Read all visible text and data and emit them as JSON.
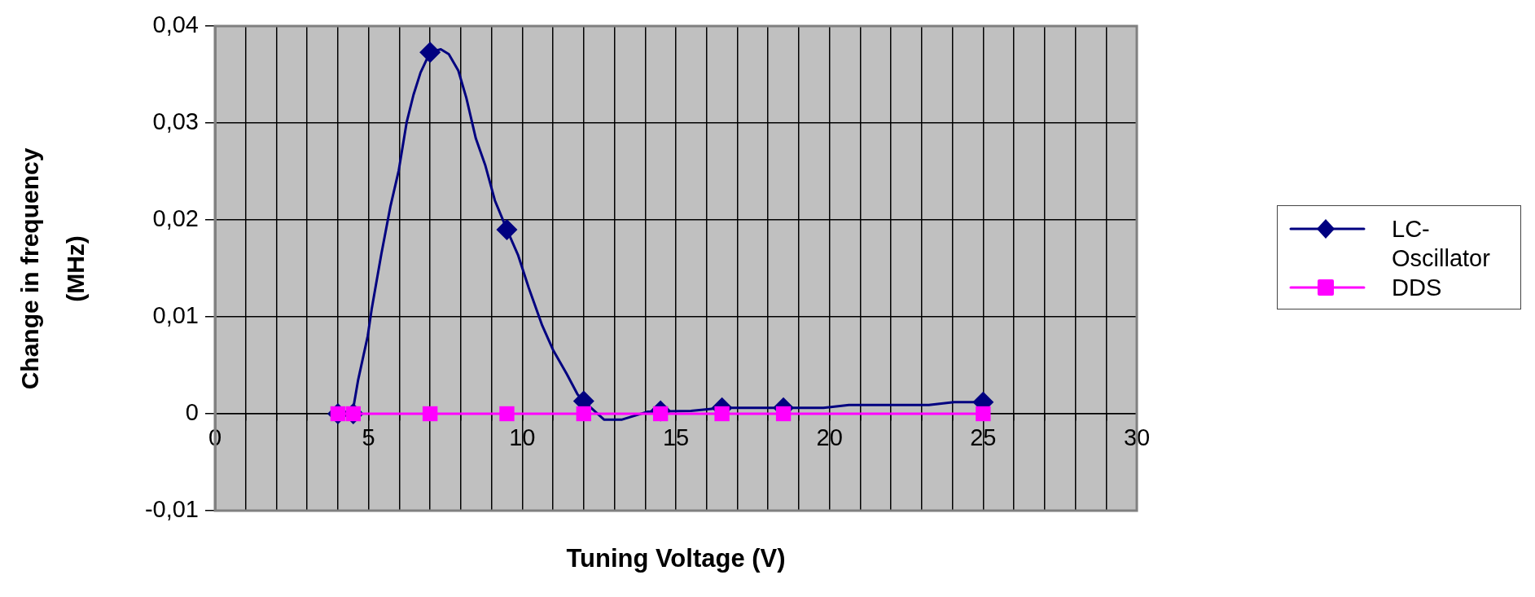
{
  "chart_data": {
    "type": "line",
    "xlabel": "Tuning Voltage (V)",
    "ylabel": "Change in frequency (MHz)",
    "xlim": [
      0,
      30
    ],
    "ylim": [
      -0.01,
      0.04
    ],
    "xticks": [
      0,
      {
        "value": 1,
        "label": null
      },
      {
        "value": 2,
        "label": null
      },
      {
        "value": 3,
        "label": null
      },
      {
        "value": 4,
        "label": null
      },
      5,
      {
        "value": 6,
        "label": null
      },
      {
        "value": 7,
        "label": null
      },
      {
        "value": 8,
        "label": null
      },
      {
        "value": 9,
        "label": null
      },
      10,
      {
        "value": 11,
        "label": null
      },
      {
        "value": 12,
        "label": null
      },
      {
        "value": 13,
        "label": null
      },
      {
        "value": 14,
        "label": null
      },
      15,
      {
        "value": 16,
        "label": null
      },
      {
        "value": 17,
        "label": null
      },
      {
        "value": 18,
        "label": null
      },
      {
        "value": 19,
        "label": null
      },
      20,
      {
        "value": 21,
        "label": null
      },
      {
        "value": 22,
        "label": null
      },
      {
        "value": 23,
        "label": null
      },
      {
        "value": 24,
        "label": null
      },
      25,
      {
        "value": 26,
        "label": null
      },
      {
        "value": 27,
        "label": null
      },
      {
        "value": 28,
        "label": null
      },
      {
        "value": 29,
        "label": null
      },
      30
    ],
    "yticks": [
      {
        "value": -0.01,
        "label": "-0,01"
      },
      0,
      {
        "value": 0.01,
        "label": "0,01"
      },
      {
        "value": 0.02,
        "label": "0,02"
      },
      {
        "value": 0.03,
        "label": "0,03"
      },
      {
        "value": 0.04,
        "label": "0,04"
      }
    ],
    "grid": true,
    "legend": "right",
    "series": [
      {
        "color": "#000080",
        "marker": "none",
        "x": [
          4,
          4.47,
          4.66,
          4.97,
          5.1,
          5.41,
          5.71,
          5.98,
          6.24,
          6.46,
          6.69,
          7,
          7.35,
          7.61,
          7.92,
          8.18,
          8.49,
          8.8,
          9.11,
          9.5,
          9.86,
          10.21,
          10.65,
          11,
          11.45,
          11.8,
          12,
          12.66,
          13.25,
          14.07,
          15.49,
          16.5,
          18.5,
          19.8,
          20.63,
          23.23,
          24.05,
          25
        ],
        "values": [
          0,
          0,
          0.0035,
          0.008,
          0.0108,
          0.0164,
          0.0214,
          0.0251,
          0.0301,
          0.0329,
          0.0352,
          0.0373,
          0.0376,
          0.0371,
          0.0354,
          0.0326,
          0.0284,
          0.0256,
          0.022,
          0.019,
          0.0164,
          0.013,
          0.0091,
          0.0066,
          0.0041,
          0.002,
          0.0013,
          -0.0006,
          -0.0006,
          0.0002,
          0.0003,
          0.0006,
          0.0006,
          0.0006,
          0.0009,
          0.0009,
          0.0012,
          0.0012
        ]
      },
      {
        "type": "scatter",
        "name": "LC-Oscillator",
        "color": "#000080",
        "marker": "diamond",
        "x": [
          4,
          4.5,
          7,
          9.5,
          12,
          14.5,
          16.5,
          18.5,
          25
        ],
        "values": [
          0,
          0,
          0.0373,
          0.019,
          0.0013,
          0.0003,
          0.0006,
          0.0006,
          0.0012
        ]
      },
      {
        "name": "DDS",
        "color": "#ff00ff",
        "marker": "square",
        "x": [
          4,
          4.5,
          7,
          9.5,
          12,
          14.5,
          16.5,
          18.5,
          25
        ],
        "values": [
          0,
          0,
          0,
          0,
          0,
          0,
          0,
          0,
          0
        ]
      }
    ]
  }
}
